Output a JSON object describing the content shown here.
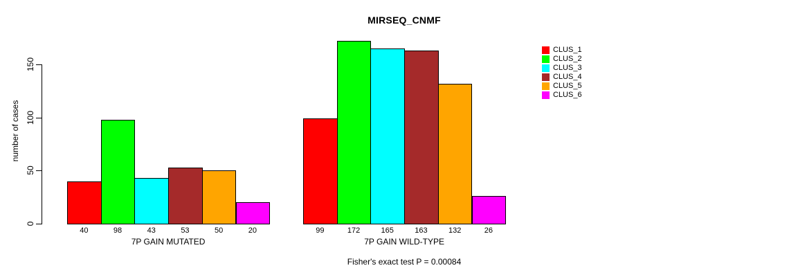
{
  "figure": {
    "background": "#FFFFFF",
    "axis_color": "#000000"
  },
  "chart_data": {
    "type": "bar",
    "title": "MIRSEQ_CNMF",
    "xlabel": "",
    "ylabel": "number of cases",
    "categories": [
      "7P GAIN MUTATED",
      "7P GAIN WILD-TYPE"
    ],
    "series": [
      {
        "name": "CLUS_1",
        "color": "#FF0000",
        "values": [
          40,
          99
        ]
      },
      {
        "name": "CLUS_2",
        "color": "#00FF00",
        "values": [
          98,
          172
        ]
      },
      {
        "name": "CLUS_3",
        "color": "#00FFFF",
        "values": [
          43,
          165
        ]
      },
      {
        "name": "CLUS_4",
        "color": "#A52A2A",
        "values": [
          53,
          163
        ]
      },
      {
        "name": "CLUS_5",
        "color": "#FFA500",
        "values": [
          50,
          132
        ]
      },
      {
        "name": "CLUS_6",
        "color": "#FF00FF",
        "values": [
          20,
          26
        ]
      }
    ],
    "bar_value_labels_shown": true,
    "yticks": [
      0,
      50,
      100,
      150
    ],
    "ylim": [
      0,
      175
    ],
    "grid": false,
    "legend_position": "top-right",
    "note": "Fisher's exact test P = 0.00084"
  }
}
